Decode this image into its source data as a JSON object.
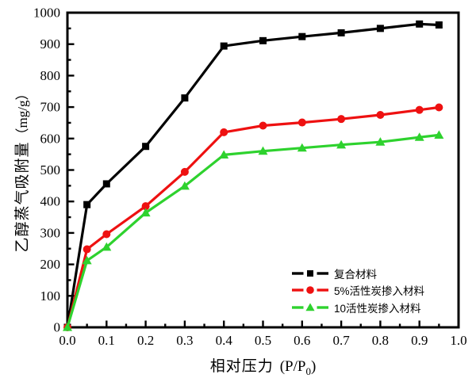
{
  "chart_data": {
    "type": "line",
    "title": "",
    "xlabel": {
      "cn": "相对压力",
      "open": "(P/P",
      "sub": "0",
      "close": ")"
    },
    "ylabel": {
      "cn": "乙醇蒸气吸附量",
      "unit": "（mg/g）"
    },
    "xlim": [
      0,
      1.0
    ],
    "ylim": [
      0,
      1000
    ],
    "xtick_labels": [
      "0.0",
      "0.1",
      "0.2",
      "0.3",
      "0.4",
      "0.5",
      "0.6",
      "0.7",
      "0.8",
      "0.9",
      "1.0"
    ],
    "ytick_labels": [
      "0",
      "100",
      "200",
      "300",
      "400",
      "500",
      "600",
      "700",
      "800",
      "900",
      "1000"
    ],
    "x_minor_step": 0.05,
    "y_minor_step": 50,
    "grid": false,
    "legend_position": "inside-lower-right",
    "axis_color": "#000000",
    "background": "#ffffff",
    "x": [
      0,
      0.05,
      0.1,
      0.2,
      0.3,
      0.4,
      0.5,
      0.6,
      0.7,
      0.8,
      0.9,
      0.95
    ],
    "series": [
      {
        "name": "复合材料",
        "color": "#000000",
        "marker": "square",
        "values": [
          0,
          390,
          456,
          575,
          729,
          894,
          911,
          924,
          936,
          950,
          964,
          961
        ]
      },
      {
        "name": "5%活性炭掺入材料",
        "color": "#ee1111",
        "marker": "circle",
        "values": [
          0,
          248,
          296,
          385,
          494,
          620,
          641,
          651,
          662,
          675,
          691,
          699
        ]
      },
      {
        "name": "10活性炭掺入材料",
        "color": "#2ed22e",
        "marker": "triangle",
        "values": [
          0,
          212,
          255,
          364,
          449,
          548,
          560,
          570,
          580,
          589,
          604,
          611
        ]
      }
    ]
  }
}
